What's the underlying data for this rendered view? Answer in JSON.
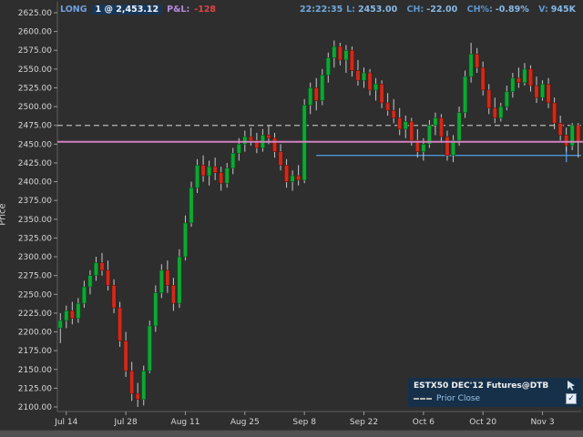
{
  "header": {
    "position_side": "LONG",
    "position_detail": "1 @ 2,453.12",
    "pnl_label": "P&L:",
    "pnl_value": "-128",
    "clock": "22:22:35",
    "quote": [
      {
        "label": "L:",
        "value": "2453.00"
      },
      {
        "label": "CH:",
        "value": "-22.00"
      },
      {
        "label": "CH%:",
        "value": "-0.89%"
      },
      {
        "label": "V:",
        "value": "945K"
      }
    ]
  },
  "legend": {
    "symbol": "ESTX50 DEC'12 Futures@DTB",
    "prior_close_label": "Prior Close",
    "checkbox_checked": true,
    "check_glyph": "✓"
  },
  "chart_data": {
    "type": "candlestick",
    "title": "ESTX50 DEC'12 Futures@DTB",
    "ylabel": "Price",
    "ylim": [
      2094,
      2639
    ],
    "last_price": 2453.0,
    "change": -22.0,
    "change_pct": -0.89,
    "volume": "945K",
    "mapping": {
      "p_top": 2625,
      "y_top": 14,
      "p_bottom": 2100,
      "y_bottom": 447
    },
    "y_ticks": [
      "2625.00",
      "2600.00",
      "2575.00",
      "2550.00",
      "2525.00",
      "2500.00",
      "2475.00",
      "2450.00",
      "2425.00",
      "2400.00",
      "2375.00",
      "2350.00",
      "2325.00",
      "2300.00",
      "2275.00",
      "2250.00",
      "2225.00",
      "2200.00",
      "2175.00",
      "2150.00",
      "2125.00",
      "2100.00"
    ],
    "x_ticks": [
      "Jul 14",
      "Jul 28",
      "Aug 11",
      "Aug 25",
      "Sep 8",
      "Sep 22",
      "Oct 6",
      "Oct 20",
      "Nov 3"
    ],
    "x_tick_indices": [
      1,
      11,
      21,
      31,
      41,
      51,
      61,
      71,
      81
    ],
    "candles": [
      [
        2205,
        2225,
        2185,
        2215
      ],
      [
        2215,
        2235,
        2205,
        2228
      ],
      [
        2228,
        2240,
        2210,
        2218
      ],
      [
        2218,
        2245,
        2212,
        2238
      ],
      [
        2238,
        2268,
        2232,
        2260
      ],
      [
        2260,
        2282,
        2250,
        2275
      ],
      [
        2275,
        2300,
        2268,
        2292
      ],
      [
        2292,
        2305,
        2275,
        2282
      ],
      [
        2282,
        2295,
        2255,
        2262
      ],
      [
        2262,
        2270,
        2225,
        2232
      ],
      [
        2232,
        2240,
        2180,
        2188
      ],
      [
        2188,
        2200,
        2140,
        2148
      ],
      [
        2148,
        2160,
        2108,
        2118
      ],
      [
        2118,
        2132,
        2100,
        2110
      ],
      [
        2110,
        2155,
        2102,
        2148
      ],
      [
        2148,
        2215,
        2145,
        2208
      ],
      [
        2208,
        2262,
        2200,
        2252
      ],
      [
        2252,
        2290,
        2245,
        2282
      ],
      [
        2282,
        2295,
        2252,
        2262
      ],
      [
        2262,
        2272,
        2228,
        2238
      ],
      [
        2238,
        2310,
        2232,
        2300
      ],
      [
        2300,
        2355,
        2295,
        2345
      ],
      [
        2345,
        2400,
        2340,
        2392
      ],
      [
        2392,
        2430,
        2385,
        2422
      ],
      [
        2422,
        2435,
        2400,
        2408
      ],
      [
        2408,
        2428,
        2395,
        2420
      ],
      [
        2420,
        2432,
        2402,
        2412
      ],
      [
        2412,
        2420,
        2388,
        2398
      ],
      [
        2398,
        2425,
        2392,
        2418
      ],
      [
        2418,
        2445,
        2410,
        2438
      ],
      [
        2438,
        2458,
        2428,
        2450
      ],
      [
        2450,
        2468,
        2440,
        2460
      ],
      [
        2460,
        2472,
        2448,
        2455
      ],
      [
        2455,
        2465,
        2438,
        2445
      ],
      [
        2445,
        2470,
        2440,
        2462
      ],
      [
        2462,
        2475,
        2450,
        2458
      ],
      [
        2458,
        2465,
        2432,
        2440
      ],
      [
        2440,
        2450,
        2415,
        2422
      ],
      [
        2422,
        2430,
        2392,
        2400
      ],
      [
        2400,
        2415,
        2388,
        2408
      ],
      [
        2408,
        2422,
        2395,
        2402
      ],
      [
        2402,
        2510,
        2398,
        2502
      ],
      [
        2502,
        2532,
        2490,
        2525
      ],
      [
        2525,
        2538,
        2495,
        2508
      ],
      [
        2508,
        2550,
        2502,
        2542
      ],
      [
        2542,
        2572,
        2532,
        2565
      ],
      [
        2565,
        2588,
        2552,
        2580
      ],
      [
        2580,
        2585,
        2555,
        2562
      ],
      [
        2562,
        2582,
        2545,
        2575
      ],
      [
        2575,
        2580,
        2540,
        2548
      ],
      [
        2548,
        2562,
        2528,
        2535
      ],
      [
        2535,
        2552,
        2525,
        2545
      ],
      [
        2545,
        2550,
        2515,
        2522
      ],
      [
        2522,
        2538,
        2508,
        2530
      ],
      [
        2530,
        2535,
        2498,
        2505
      ],
      [
        2505,
        2518,
        2488,
        2495
      ],
      [
        2495,
        2510,
        2478,
        2485
      ],
      [
        2485,
        2498,
        2462,
        2470
      ],
      [
        2470,
        2488,
        2458,
        2480
      ],
      [
        2480,
        2485,
        2448,
        2455
      ],
      [
        2455,
        2470,
        2432,
        2440
      ],
      [
        2440,
        2458,
        2428,
        2450
      ],
      [
        2450,
        2482,
        2445,
        2475
      ],
      [
        2475,
        2492,
        2462,
        2485
      ],
      [
        2485,
        2490,
        2452,
        2460
      ],
      [
        2460,
        2468,
        2428,
        2435
      ],
      [
        2435,
        2462,
        2426,
        2455
      ],
      [
        2455,
        2500,
        2448,
        2492
      ],
      [
        2492,
        2548,
        2485,
        2540
      ],
      [
        2540,
        2585,
        2532,
        2570
      ],
      [
        2570,
        2578,
        2545,
        2552
      ],
      [
        2552,
        2560,
        2515,
        2522
      ],
      [
        2522,
        2530,
        2490,
        2498
      ],
      [
        2498,
        2512,
        2478,
        2485
      ],
      [
        2485,
        2505,
        2480,
        2500
      ],
      [
        2500,
        2528,
        2495,
        2520
      ],
      [
        2520,
        2545,
        2512,
        2538
      ],
      [
        2538,
        2552,
        2525,
        2532
      ],
      [
        2532,
        2558,
        2528,
        2550
      ],
      [
        2550,
        2555,
        2520,
        2528
      ],
      [
        2528,
        2540,
        2505,
        2512
      ],
      [
        2512,
        2535,
        2508,
        2530
      ],
      [
        2530,
        2538,
        2498,
        2505
      ],
      [
        2505,
        2512,
        2470,
        2478
      ],
      [
        2478,
        2488,
        2455,
        2462
      ],
      [
        2462,
        2472,
        2440,
        2448
      ],
      [
        2448,
        2478,
        2442,
        2475
      ],
      [
        2475,
        2478,
        2432,
        2453
      ]
    ],
    "overlays": {
      "position_line": 2453.12,
      "prior_close": 2475.0,
      "support_line": 2435.0,
      "support_start_index": 43,
      "support_tick_index": 85
    },
    "colors": {
      "up": "#0da832",
      "down": "#cf2a1b",
      "wick": "#c8c8c8",
      "position": "#d080c0",
      "prior_close": "#b8b8b8",
      "support": "#4f94d4",
      "axis_text": "#d6d6d6",
      "axis_line": "#5f5f5f",
      "background": "#2e2e2e"
    }
  }
}
